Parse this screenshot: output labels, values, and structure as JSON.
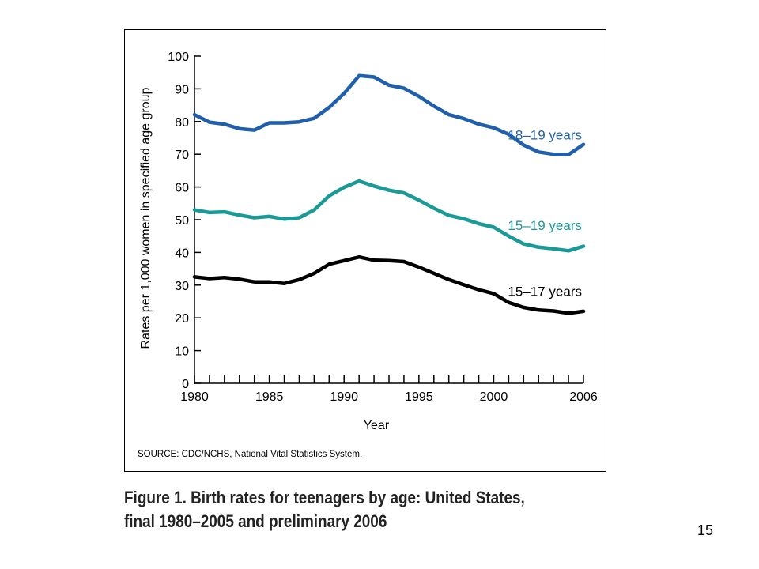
{
  "chart_data": {
    "type": "line",
    "xlabel": "Year",
    "ylabel": "Rates per 1,000 women in specified age group",
    "ylim": [
      0,
      100
    ],
    "xlim": [
      1980,
      2006
    ],
    "y_ticks": [
      0,
      10,
      20,
      30,
      40,
      50,
      60,
      70,
      80,
      90,
      100
    ],
    "x_tick_labels": [
      {
        "value": 1980,
        "label": "1980"
      },
      {
        "value": 1985,
        "label": "1985"
      },
      {
        "value": 1990,
        "label": "1990"
      },
      {
        "value": 1995,
        "label": "1995"
      },
      {
        "value": 2000,
        "label": "2000"
      },
      {
        "value": 2006,
        "label": "2006"
      }
    ],
    "x_minor_ticks": [
      1980,
      1981,
      1982,
      1983,
      1984,
      1985,
      1986,
      1987,
      1988,
      1989,
      1990,
      1991,
      1992,
      1993,
      1994,
      1995,
      1996,
      1997,
      1998,
      1999,
      2000,
      2001,
      2002,
      2003,
      2004,
      2005,
      2006
    ],
    "grid": false,
    "legend": "labels next to lines",
    "x": [
      1980,
      1981,
      1982,
      1983,
      1984,
      1985,
      1986,
      1987,
      1988,
      1989,
      1990,
      1991,
      1992,
      1993,
      1994,
      1995,
      1996,
      1997,
      1998,
      1999,
      2000,
      2001,
      2002,
      2003,
      2004,
      2005,
      2006
    ],
    "series": [
      {
        "name": "18–19 years",
        "color": "#1f5fab",
        "values": [
          82.1,
          79.8,
          79.2,
          77.8,
          77.4,
          79.6,
          79.6,
          79.9,
          81.0,
          84.3,
          88.6,
          94.0,
          93.6,
          91.1,
          90.2,
          87.7,
          84.7,
          82.1,
          80.9,
          79.2,
          78.1,
          76.1,
          72.8,
          70.7,
          70.0,
          69.9,
          73.0
        ]
      },
      {
        "name": "15–19 years",
        "color": "#1a9a96",
        "values": [
          53.0,
          52.2,
          52.4,
          51.4,
          50.6,
          51.0,
          50.2,
          50.6,
          53.0,
          57.3,
          59.9,
          61.8,
          60.3,
          59.0,
          58.2,
          56.0,
          53.5,
          51.3,
          50.3,
          48.8,
          47.7,
          45.0,
          42.6,
          41.6,
          41.1,
          40.5,
          41.9
        ]
      },
      {
        "name": "15–17 years",
        "color": "#000000",
        "values": [
          32.5,
          32.0,
          32.3,
          31.8,
          31.0,
          31.0,
          30.5,
          31.7,
          33.6,
          36.4,
          37.5,
          38.6,
          37.6,
          37.5,
          37.2,
          35.5,
          33.6,
          31.7,
          30.1,
          28.6,
          27.4,
          24.7,
          23.2,
          22.4,
          22.1,
          21.4,
          22.0
        ]
      }
    ]
  },
  "source": "SOURCE: CDC/NCHS, National Vital Statistics System.",
  "caption": {
    "line1": "Figure 1. Birth rates for teenagers by age: United States,",
    "line2": "final 1980–2005 and preliminary 2006"
  },
  "page_number": "15"
}
